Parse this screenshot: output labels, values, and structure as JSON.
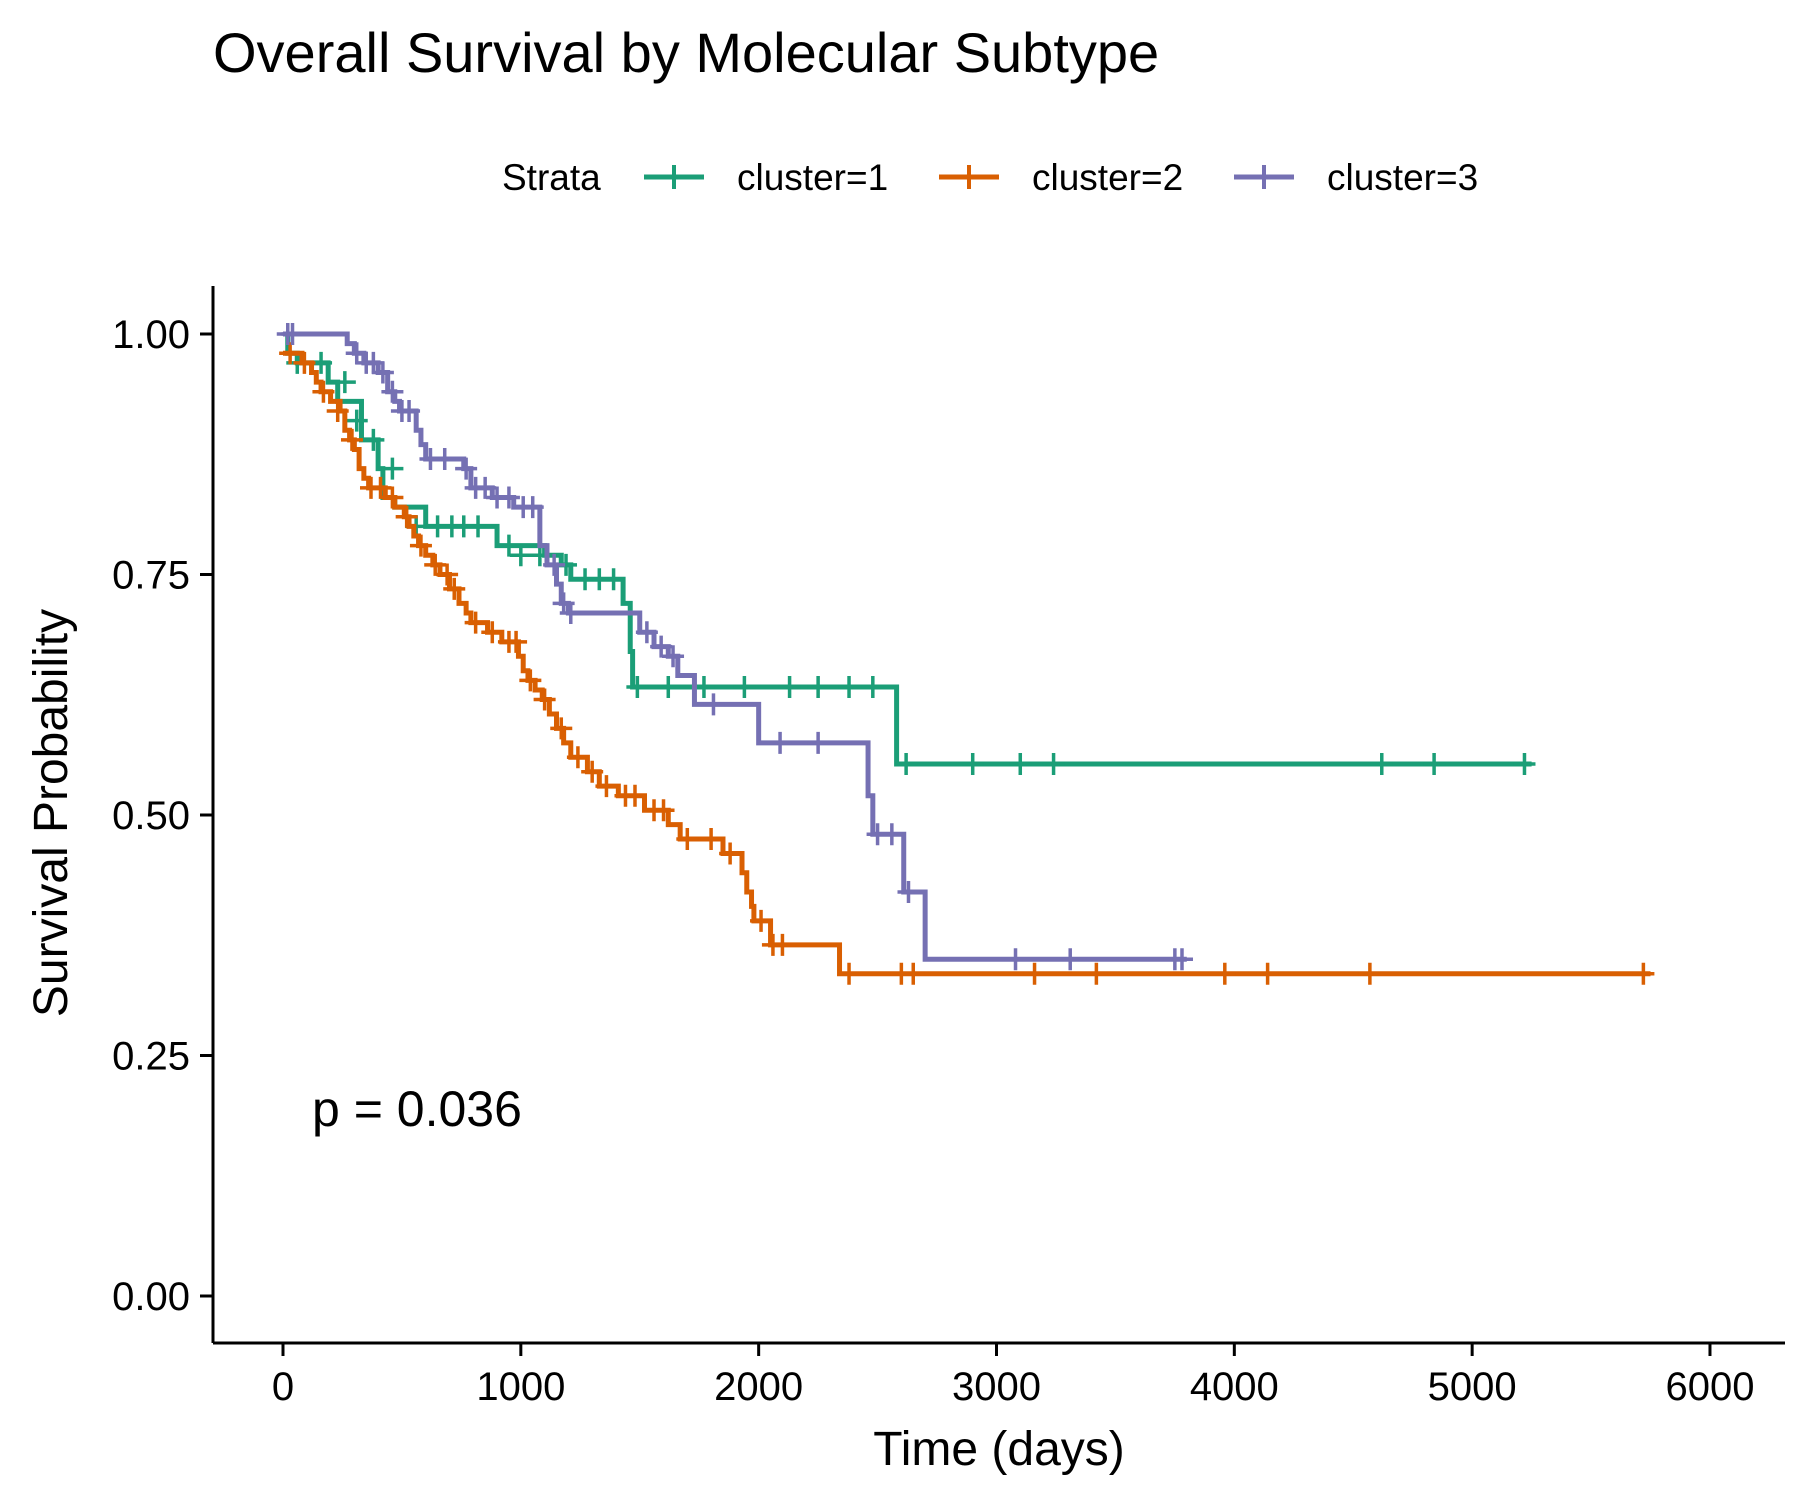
{
  "chart_data": {
    "type": "line",
    "title": "Overall Survival by Molecular Subtype",
    "xlabel": "Time (days)",
    "ylabel": "Survival Probability",
    "xlim": [
      -300,
      6300
    ],
    "ylim": [
      -0.05,
      1.05
    ],
    "x_ticks": [
      0,
      1000,
      2000,
      3000,
      4000,
      5000,
      6000
    ],
    "x_tick_labels": [
      "0",
      "1000",
      "2000",
      "3000",
      "4000",
      "5000",
      "6000"
    ],
    "y_ticks": [
      0,
      0.25,
      0.5,
      0.75,
      1.0
    ],
    "y_tick_labels": [
      "0.00",
      "0.25",
      "0.50",
      "0.75",
      "1.00"
    ],
    "legend": {
      "title": "Strata",
      "placement": "top"
    },
    "annotation": "p = 0.036",
    "series": [
      {
        "name": "cluster=1",
        "color": "#1b9e77",
        "steps": [
          [
            0,
            1.0
          ],
          [
            20,
            0.98
          ],
          [
            60,
            0.97
          ],
          [
            190,
            0.95
          ],
          [
            230,
            0.93
          ],
          [
            330,
            0.89
          ],
          [
            400,
            0.86
          ],
          [
            420,
            0.83
          ],
          [
            470,
            0.82
          ],
          [
            600,
            0.8
          ],
          [
            900,
            0.78
          ],
          [
            1100,
            0.77
          ],
          [
            1170,
            0.76
          ],
          [
            1210,
            0.745
          ],
          [
            1430,
            0.72
          ],
          [
            1460,
            0.67
          ],
          [
            1470,
            0.633
          ],
          [
            2580,
            0.553
          ],
          [
            5250,
            0.553
          ]
        ],
        "censors": [
          [
            60,
            0.97
          ],
          [
            160,
            0.97
          ],
          [
            260,
            0.95
          ],
          [
            310,
            0.91
          ],
          [
            380,
            0.89
          ],
          [
            460,
            0.86
          ],
          [
            560,
            0.8
          ],
          [
            650,
            0.8
          ],
          [
            710,
            0.8
          ],
          [
            760,
            0.8
          ],
          [
            820,
            0.8
          ],
          [
            950,
            0.78
          ],
          [
            1000,
            0.77
          ],
          [
            1080,
            0.77
          ],
          [
            1190,
            0.76
          ],
          [
            1270,
            0.745
          ],
          [
            1330,
            0.745
          ],
          [
            1390,
            0.745
          ],
          [
            1490,
            0.633
          ],
          [
            1620,
            0.633
          ],
          [
            1770,
            0.633
          ],
          [
            1940,
            0.633
          ],
          [
            2130,
            0.633
          ],
          [
            2250,
            0.633
          ],
          [
            2380,
            0.633
          ],
          [
            2480,
            0.633
          ],
          [
            2620,
            0.553
          ],
          [
            2900,
            0.553
          ],
          [
            3100,
            0.553
          ],
          [
            3240,
            0.553
          ],
          [
            4620,
            0.553
          ],
          [
            4840,
            0.553
          ],
          [
            5220,
            0.553
          ]
        ]
      },
      {
        "name": "cluster=2",
        "color": "#d95f02",
        "steps": [
          [
            0,
            0.98
          ],
          [
            80,
            0.97
          ],
          [
            120,
            0.96
          ],
          [
            140,
            0.95
          ],
          [
            160,
            0.94
          ],
          [
            200,
            0.93
          ],
          [
            240,
            0.92
          ],
          [
            260,
            0.9
          ],
          [
            280,
            0.89
          ],
          [
            300,
            0.88
          ],
          [
            320,
            0.86
          ],
          [
            340,
            0.85
          ],
          [
            360,
            0.84
          ],
          [
            430,
            0.83
          ],
          [
            470,
            0.82
          ],
          [
            510,
            0.81
          ],
          [
            530,
            0.8
          ],
          [
            550,
            0.79
          ],
          [
            570,
            0.78
          ],
          [
            600,
            0.77
          ],
          [
            630,
            0.76
          ],
          [
            660,
            0.75
          ],
          [
            700,
            0.735
          ],
          [
            740,
            0.72
          ],
          [
            770,
            0.71
          ],
          [
            790,
            0.7
          ],
          [
            860,
            0.69
          ],
          [
            920,
            0.68
          ],
          [
            990,
            0.665
          ],
          [
            1010,
            0.65
          ],
          [
            1030,
            0.64
          ],
          [
            1060,
            0.63
          ],
          [
            1090,
            0.62
          ],
          [
            1120,
            0.605
          ],
          [
            1150,
            0.59
          ],
          [
            1180,
            0.575
          ],
          [
            1210,
            0.56
          ],
          [
            1280,
            0.545
          ],
          [
            1330,
            0.53
          ],
          [
            1410,
            0.52
          ],
          [
            1520,
            0.505
          ],
          [
            1620,
            0.49
          ],
          [
            1670,
            0.475
          ],
          [
            1850,
            0.46
          ],
          [
            1930,
            0.44
          ],
          [
            1950,
            0.42
          ],
          [
            1970,
            0.405
          ],
          [
            1980,
            0.39
          ],
          [
            2050,
            0.365
          ],
          [
            2340,
            0.335
          ],
          [
            5750,
            0.335
          ]
        ],
        "censors": [
          [
            30,
            0.98
          ],
          [
            90,
            0.97
          ],
          [
            170,
            0.94
          ],
          [
            230,
            0.92
          ],
          [
            290,
            0.89
          ],
          [
            370,
            0.84
          ],
          [
            410,
            0.84
          ],
          [
            460,
            0.83
          ],
          [
            520,
            0.81
          ],
          [
            580,
            0.78
          ],
          [
            640,
            0.76
          ],
          [
            690,
            0.75
          ],
          [
            720,
            0.735
          ],
          [
            810,
            0.7
          ],
          [
            880,
            0.69
          ],
          [
            950,
            0.68
          ],
          [
            980,
            0.68
          ],
          [
            1040,
            0.64
          ],
          [
            1100,
            0.62
          ],
          [
            1170,
            0.59
          ],
          [
            1240,
            0.56
          ],
          [
            1300,
            0.545
          ],
          [
            1360,
            0.53
          ],
          [
            1440,
            0.52
          ],
          [
            1480,
            0.52
          ],
          [
            1560,
            0.505
          ],
          [
            1600,
            0.505
          ],
          [
            1700,
            0.475
          ],
          [
            1800,
            0.475
          ],
          [
            1880,
            0.46
          ],
          [
            2010,
            0.39
          ],
          [
            2060,
            0.365
          ],
          [
            2100,
            0.365
          ],
          [
            2380,
            0.335
          ],
          [
            2600,
            0.335
          ],
          [
            2650,
            0.335
          ],
          [
            3160,
            0.335
          ],
          [
            3420,
            0.335
          ],
          [
            3960,
            0.335
          ],
          [
            4140,
            0.335
          ],
          [
            4570,
            0.335
          ],
          [
            5720,
            0.335
          ]
        ]
      },
      {
        "name": "cluster=3",
        "color": "#7570b3",
        "steps": [
          [
            0,
            1.0
          ],
          [
            270,
            0.99
          ],
          [
            300,
            0.98
          ],
          [
            340,
            0.97
          ],
          [
            400,
            0.96
          ],
          [
            440,
            0.94
          ],
          [
            470,
            0.93
          ],
          [
            490,
            0.92
          ],
          [
            560,
            0.9
          ],
          [
            580,
            0.885
          ],
          [
            600,
            0.87
          ],
          [
            760,
            0.86
          ],
          [
            790,
            0.84
          ],
          [
            880,
            0.83
          ],
          [
            970,
            0.82
          ],
          [
            1080,
            0.78
          ],
          [
            1110,
            0.76
          ],
          [
            1150,
            0.74
          ],
          [
            1170,
            0.72
          ],
          [
            1200,
            0.71
          ],
          [
            1500,
            0.69
          ],
          [
            1560,
            0.675
          ],
          [
            1620,
            0.665
          ],
          [
            1660,
            0.645
          ],
          [
            1730,
            0.615
          ],
          [
            2000,
            0.575
          ],
          [
            2460,
            0.52
          ],
          [
            2480,
            0.48
          ],
          [
            2610,
            0.42
          ],
          [
            2700,
            0.35
          ],
          [
            3800,
            0.35
          ]
        ],
        "censors": [
          [
            20,
            1.0
          ],
          [
            40,
            1.0
          ],
          [
            310,
            0.98
          ],
          [
            350,
            0.97
          ],
          [
            380,
            0.97
          ],
          [
            420,
            0.96
          ],
          [
            460,
            0.94
          ],
          [
            500,
            0.92
          ],
          [
            530,
            0.92
          ],
          [
            620,
            0.87
          ],
          [
            680,
            0.87
          ],
          [
            770,
            0.86
          ],
          [
            810,
            0.84
          ],
          [
            850,
            0.84
          ],
          [
            900,
            0.83
          ],
          [
            950,
            0.83
          ],
          [
            1010,
            0.82
          ],
          [
            1050,
            0.82
          ],
          [
            1140,
            0.76
          ],
          [
            1180,
            0.72
          ],
          [
            1210,
            0.71
          ],
          [
            1530,
            0.69
          ],
          [
            1590,
            0.675
          ],
          [
            1640,
            0.665
          ],
          [
            1810,
            0.615
          ],
          [
            2090,
            0.575
          ],
          [
            2250,
            0.575
          ],
          [
            2500,
            0.48
          ],
          [
            2560,
            0.48
          ],
          [
            2630,
            0.42
          ],
          [
            3080,
            0.35
          ],
          [
            3310,
            0.35
          ],
          [
            3750,
            0.35
          ],
          [
            3780,
            0.35
          ]
        ]
      }
    ]
  }
}
